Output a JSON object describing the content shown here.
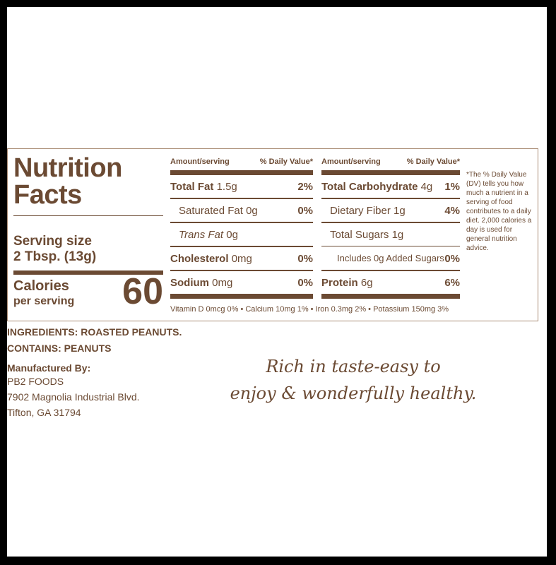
{
  "nutrition": {
    "title_line1": "Nutrition",
    "title_line2": "Facts",
    "serving_label": "Serving size",
    "serving_value": "2 Tbsp. (13g)",
    "calories_label": "Calories",
    "calories_sublabel": "per serving",
    "calories_value": "60",
    "col_header_amount": "Amount/serving",
    "col_header_dv": "% Daily Value*",
    "left_rows": [
      {
        "name": "Total Fat",
        "amount": "1.5g",
        "dv": "2%"
      },
      {
        "name": "Saturated Fat",
        "amount": "0g",
        "dv": "0%"
      },
      {
        "name": "Trans Fat",
        "amount": "0g",
        "dv": ""
      },
      {
        "name": "Cholesterol",
        "amount": "0mg",
        "dv": "0%"
      },
      {
        "name": "Sodium",
        "amount": "0mg",
        "dv": "0%"
      }
    ],
    "right_rows": [
      {
        "name": "Total Carbohydrate",
        "amount": "4g",
        "dv": "1%"
      },
      {
        "name": "Dietary Fiber",
        "amount": "1g",
        "dv": "4%"
      },
      {
        "name": "Total Sugars",
        "amount": "1g",
        "dv": ""
      },
      {
        "name": "Includes 0g Added Sugars",
        "amount": "",
        "dv": "0%"
      },
      {
        "name": "Protein",
        "amount": "6g",
        "dv": "6%"
      }
    ],
    "vitamins": "Vitamin D 0mcg 0% • Calcium 10mg 1% • Iron 0.3mg 2% • Potassium 150mg 3%",
    "footnote": "*The % Daily Value (DV) tells you how much a nutrient in a serving of food contributes to a daily diet. 2,000 calories a day is used for general nutrition advice."
  },
  "ingredients": "INGREDIENTS: ROASTED PEANUTS.",
  "contains": "CONTAINS: PEANUTS",
  "manufacturer": {
    "heading": "Manufactured By:",
    "name": "PB2 FOODS",
    "address1": "7902 Magnolia Industrial Blvd.",
    "address2": "Tifton, GA 31794"
  },
  "tagline_line1": "Rich in taste-easy to",
  "tagline_line2": "enjoy & wonderfully healthy.",
  "colors": {
    "brown": "#6b4a33",
    "background": "#ffffff",
    "frame": "#000000"
  }
}
